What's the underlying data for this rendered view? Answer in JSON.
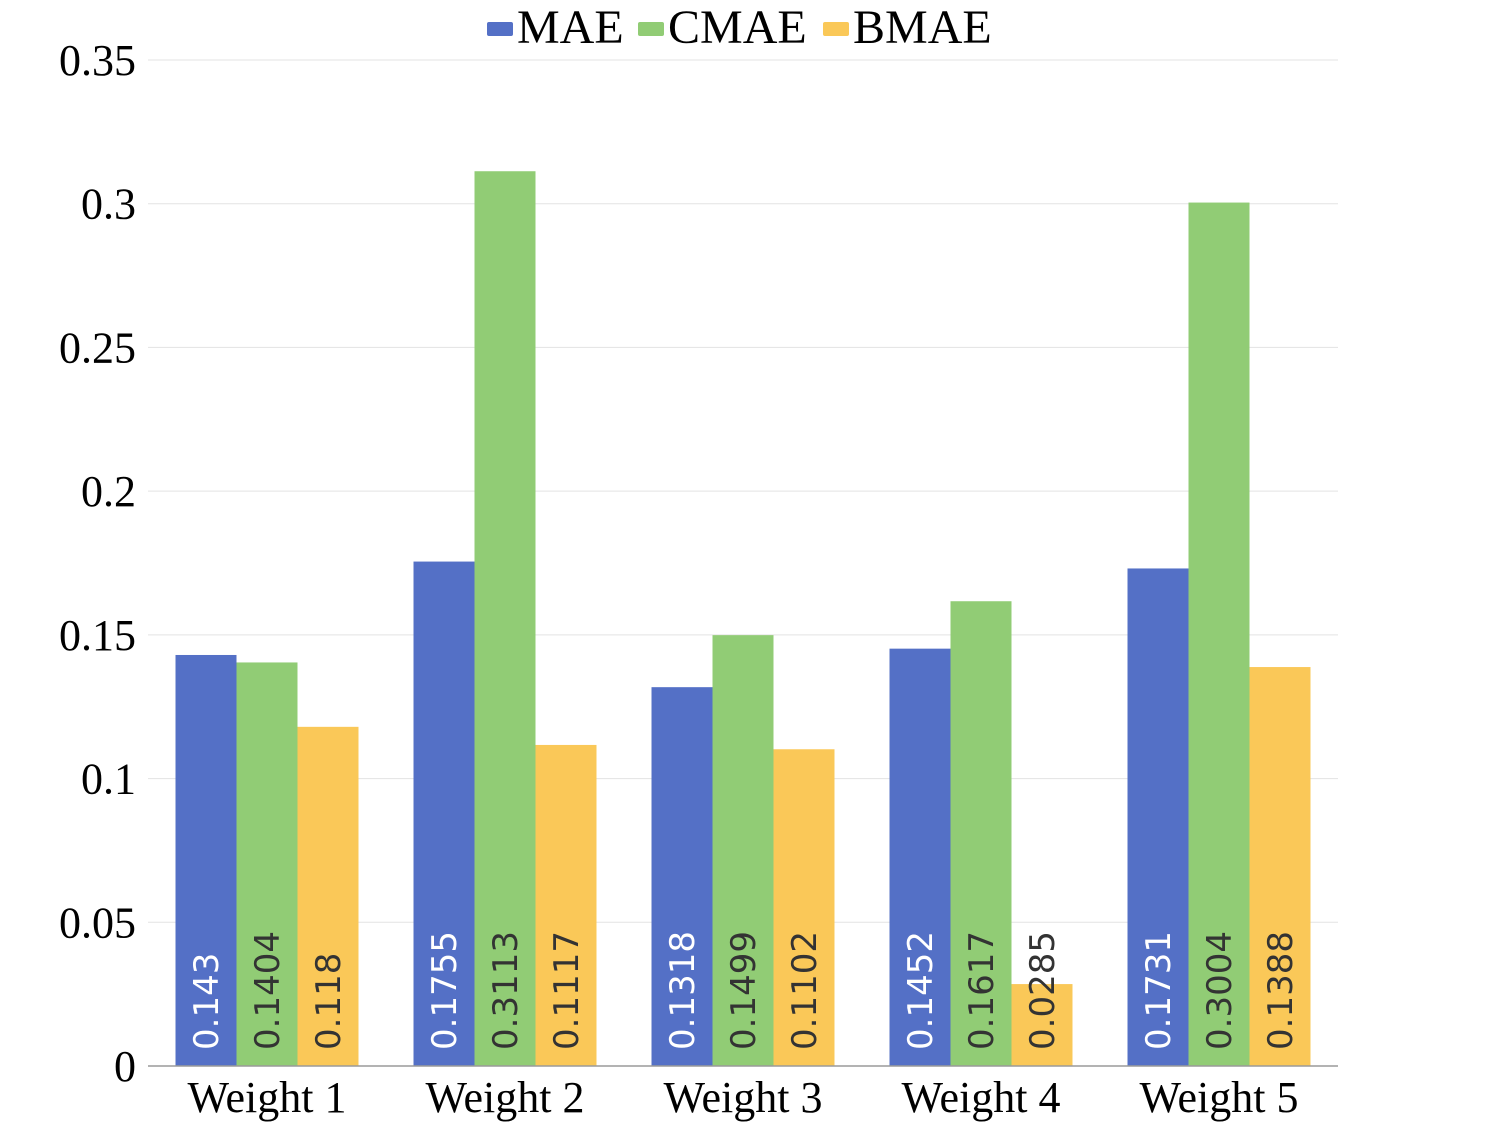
{
  "chart_data": {
    "type": "bar",
    "title": "",
    "xlabel": "",
    "ylabel": "",
    "categories": [
      "Weight 1",
      "Weight 2",
      "Weight 3",
      "Weight 4",
      "Weight 5"
    ],
    "series": [
      {
        "name": "MAE",
        "color": "#5470C6",
        "label_color": "#ffffff",
        "values": [
          0.143,
          0.1755,
          0.1318,
          0.1452,
          0.1731
        ]
      },
      {
        "name": "CMAE",
        "color": "#91CC75",
        "label_color": "#333333",
        "values": [
          0.1404,
          0.3113,
          0.1499,
          0.1617,
          0.3004
        ]
      },
      {
        "name": "BMAE",
        "color": "#FAC858",
        "label_color": "#333333",
        "values": [
          0.118,
          0.1117,
          0.1102,
          0.0285,
          0.1388
        ]
      }
    ],
    "data_labels": [
      [
        "0.143",
        "0.1755",
        "0.1318",
        "0.1452",
        "0.1731"
      ],
      [
        "0.1404",
        "0.3113",
        "0.1499",
        "0.1617",
        "0.3004"
      ],
      [
        "0.118",
        "0.1117",
        "0.1102",
        "0.0285",
        "0.1388"
      ]
    ],
    "ylim": [
      0,
      0.35
    ],
    "yticks": [
      0,
      0.05,
      0.1,
      0.15,
      0.2,
      0.25,
      0.3,
      0.35
    ],
    "ytick_labels": [
      "0",
      "0.05",
      "0.1",
      "0.15",
      "0.2",
      "0.25",
      "0.3",
      "0.35"
    ],
    "grid": true,
    "legend": {
      "position": "top-center",
      "entries": [
        "MAE",
        "CMAE",
        "BMAE"
      ]
    }
  }
}
